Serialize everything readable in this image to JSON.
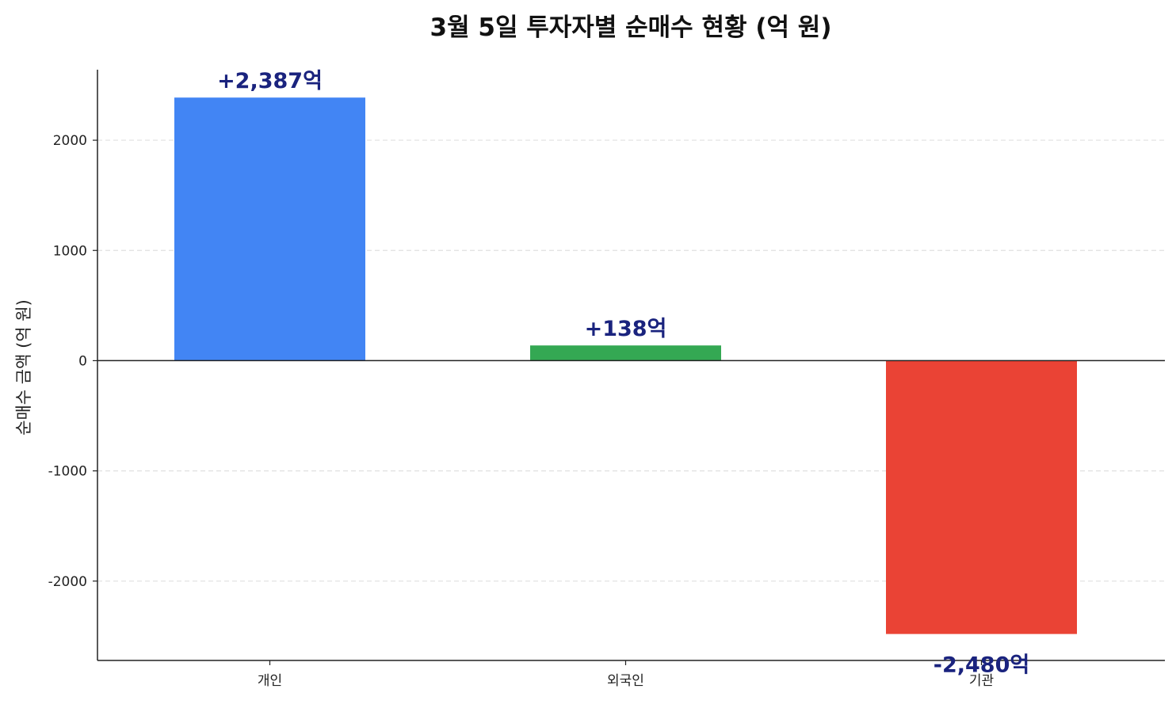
{
  "chart_data": {
    "type": "bar",
    "title": "3월 5일 투자자별 순매수 현황 (억 원)",
    "xlabel": "",
    "ylabel": "순매수 금액 (억 원)",
    "ylim": [
      -2720,
      2640
    ],
    "yticks": [
      2000,
      1000,
      0,
      -1000,
      -2000
    ],
    "categories": [
      "개인",
      "외국인",
      "기관"
    ],
    "values": [
      2387,
      138,
      -2480
    ],
    "data_labels": [
      "+2,387억",
      "+138억",
      "-2,480억"
    ],
    "grid": true,
    "legend": "none",
    "colors": {
      "bars": [
        "#4285F4",
        "#34A853",
        "#EA4335"
      ],
      "data_label": "#1A237E",
      "zero_line": "#222222",
      "grid": "#E0E0E0"
    }
  }
}
